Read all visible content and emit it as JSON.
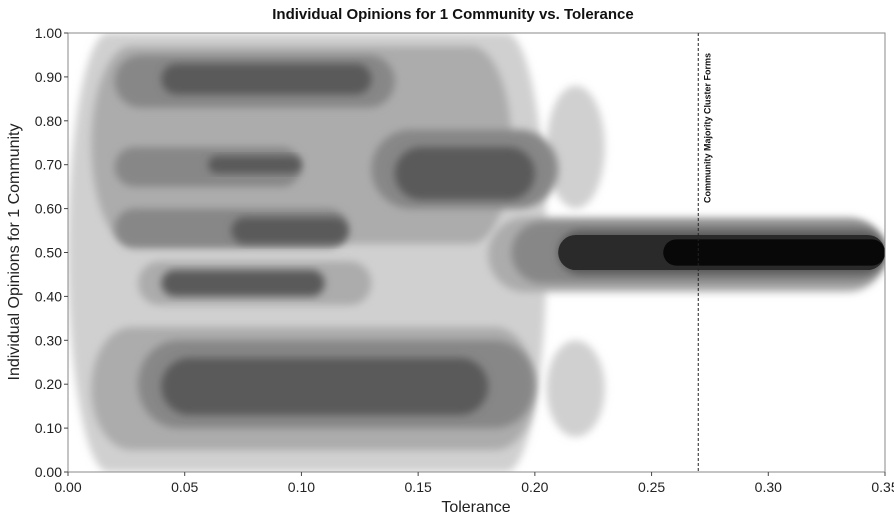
{
  "chart_data": {
    "type": "heatmap",
    "title": "Individual Opinions for 1 Community vs. Tolerance",
    "xlabel": "Tolerance",
    "ylabel": "Individual Opinions for 1 Community",
    "xlim": [
      0.0,
      0.35
    ],
    "ylim": [
      0.0,
      1.0
    ],
    "x_ticks": [
      "0.00",
      "0.05",
      "0.10",
      "0.15",
      "0.20",
      "0.25",
      "0.30",
      "0.35"
    ],
    "y_ticks": [
      "0.00",
      "0.10",
      "0.20",
      "0.30",
      "0.40",
      "0.50",
      "0.60",
      "0.70",
      "0.80",
      "0.90",
      "1.00"
    ],
    "grid": false,
    "colormap": [
      "#ededed",
      "#d0d0d0",
      "#acacac",
      "#878787",
      "#5a5a5a",
      "#2a2a2a",
      "#080808"
    ],
    "annotations": [
      {
        "type": "vline",
        "x": 0.27,
        "label": "Community Majority Cluster Forms"
      }
    ],
    "regions": [
      {
        "level": 1,
        "x0": 0.0,
        "x1": 0.205,
        "y0": 0.0,
        "y1": 1.0
      },
      {
        "level": 1,
        "x0": 0.205,
        "x1": 0.23,
        "y0": 0.6,
        "y1": 0.88
      },
      {
        "level": 1,
        "x0": 0.205,
        "x1": 0.23,
        "y0": 0.08,
        "y1": 0.3
      },
      {
        "level": 2,
        "x0": 0.01,
        "x1": 0.19,
        "y0": 0.52,
        "y1": 0.97
      },
      {
        "level": 2,
        "x0": 0.01,
        "x1": 0.2,
        "y0": 0.05,
        "y1": 0.33
      },
      {
        "level": 2,
        "x0": 0.03,
        "x1": 0.13,
        "y0": 0.38,
        "y1": 0.48
      },
      {
        "level": 3,
        "x0": 0.02,
        "x1": 0.14,
        "y0": 0.83,
        "y1": 0.95
      },
      {
        "level": 3,
        "x0": 0.13,
        "x1": 0.21,
        "y0": 0.6,
        "y1": 0.78
      },
      {
        "level": 3,
        "x0": 0.02,
        "x1": 0.12,
        "y0": 0.51,
        "y1": 0.6
      },
      {
        "level": 3,
        "x0": 0.03,
        "x1": 0.2,
        "y0": 0.1,
        "y1": 0.3
      },
      {
        "level": 3,
        "x0": 0.02,
        "x1": 0.1,
        "y0": 0.65,
        "y1": 0.74
      },
      {
        "level": 4,
        "x0": 0.04,
        "x1": 0.13,
        "y0": 0.86,
        "y1": 0.93
      },
      {
        "level": 4,
        "x0": 0.14,
        "x1": 0.2,
        "y0": 0.62,
        "y1": 0.74
      },
      {
        "level": 4,
        "x0": 0.07,
        "x1": 0.12,
        "y0": 0.52,
        "y1": 0.58
      },
      {
        "level": 4,
        "x0": 0.04,
        "x1": 0.11,
        "y0": 0.4,
        "y1": 0.46
      },
      {
        "level": 4,
        "x0": 0.04,
        "x1": 0.18,
        "y0": 0.13,
        "y1": 0.26
      },
      {
        "level": 4,
        "x0": 0.06,
        "x1": 0.1,
        "y0": 0.68,
        "y1": 0.72
      },
      {
        "level": 2,
        "x0": 0.18,
        "x1": 0.35,
        "y0": 0.41,
        "y1": 0.58
      },
      {
        "level": 3,
        "x0": 0.19,
        "x1": 0.35,
        "y0": 0.43,
        "y1": 0.57
      },
      {
        "level": 4,
        "x0": 0.21,
        "x1": 0.35,
        "y0": 0.45,
        "y1": 0.55
      },
      {
        "level": 5,
        "x0": 0.21,
        "x1": 0.35,
        "y0": 0.46,
        "y1": 0.54
      },
      {
        "level": 6,
        "x0": 0.255,
        "x1": 0.35,
        "y0": 0.47,
        "y1": 0.53
      }
    ]
  }
}
